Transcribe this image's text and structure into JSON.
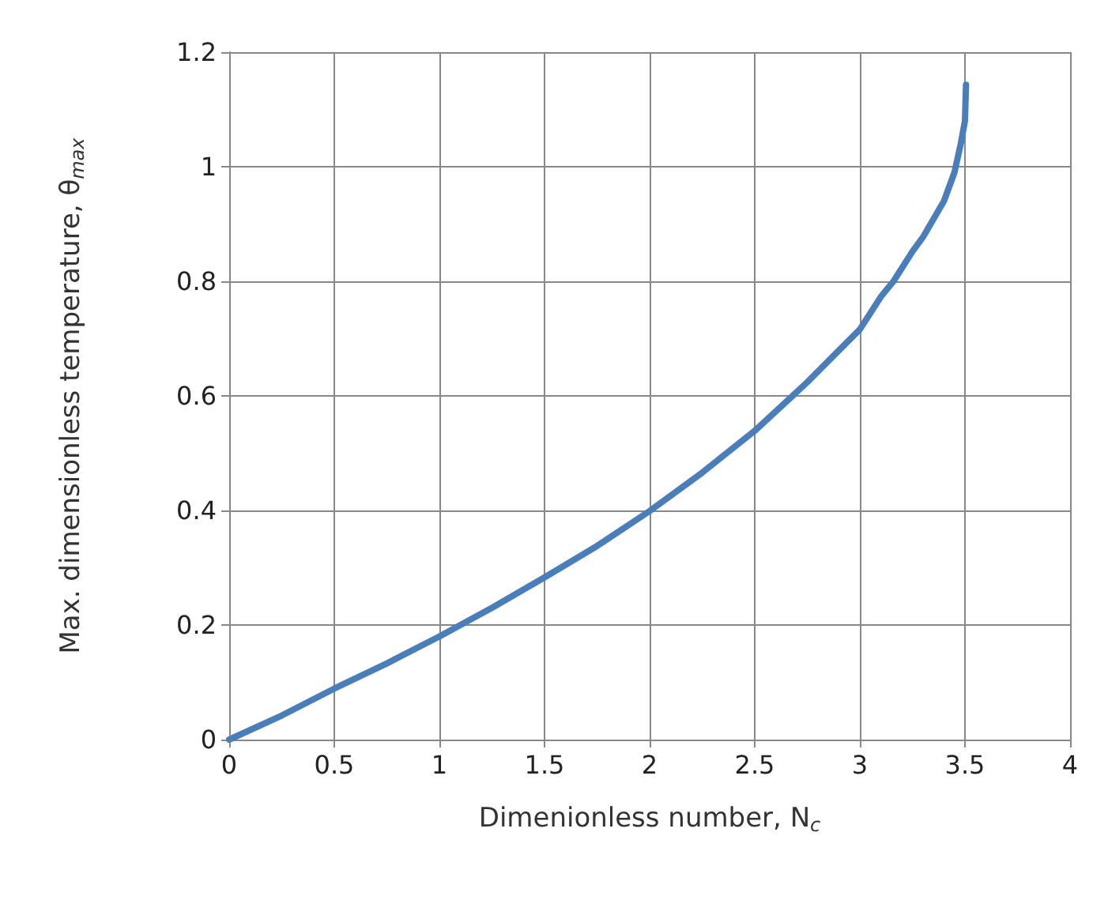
{
  "chart_data": {
    "type": "line",
    "xlabel": "Dimenionless number, N$_{c}$",
    "ylabel": "Max. dimensionless temperature, θ$_{max}$",
    "series": [
      {
        "color": "#4a7ebb",
        "x": [
          0,
          0.25,
          0.5,
          0.75,
          1,
          1.25,
          1.5,
          1.75,
          2,
          2.25,
          2.5,
          2.68,
          2.75,
          3,
          3.1,
          3.16,
          3.25,
          3.3,
          3.4,
          3.45,
          3.48,
          3.5,
          3.505
        ],
        "values": [
          0,
          0.042,
          0.089,
          0.133,
          0.18,
          0.23,
          0.283,
          0.338,
          0.399,
          0.466,
          0.539,
          0.6,
          0.624,
          0.716,
          0.773,
          0.8,
          0.852,
          0.877,
          0.94,
          0.99,
          1.04,
          1.08,
          1.143
        ]
      }
    ],
    "xlim": [
      0,
      4
    ],
    "xticks": [
      0,
      0.5,
      1,
      1.5,
      2,
      2.5,
      3,
      3.5,
      4
    ],
    "ylim": [
      0,
      1.2
    ],
    "yticks": [
      0,
      0.2,
      0.4,
      0.6,
      0.8,
      1,
      1.2
    ],
    "grid": true,
    "marker": "none",
    "line_style": "solid"
  }
}
